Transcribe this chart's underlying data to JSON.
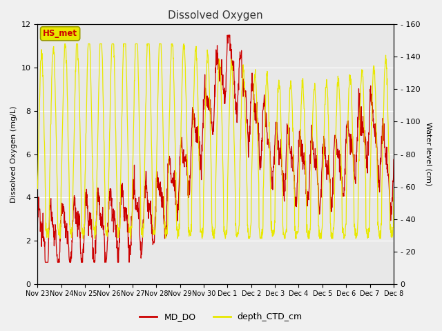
{
  "title": "Dissolved Oxygen",
  "ylabel_left": "Dissolved Oxygen (mg/L)",
  "ylabel_right": "Water level (cm)",
  "ylim_left": [
    0,
    12
  ],
  "ylim_right": [
    0,
    160
  ],
  "yticks_left": [
    0,
    2,
    4,
    6,
    8,
    10,
    12
  ],
  "yticks_right": [
    0,
    20,
    40,
    60,
    80,
    100,
    120,
    140,
    160
  ],
  "xtick_labels": [
    "Nov 23",
    "Nov 24",
    "Nov 25",
    "Nov 26",
    "Nov 27",
    "Nov 28",
    "Nov 29",
    "Nov 30",
    "Dec 1",
    "Dec 2",
    "Dec 3",
    "Dec 4",
    "Dec 5",
    "Dec 6",
    "Dec 7",
    "Dec 8"
  ],
  "fig_bg_color": "#f0f0f0",
  "plot_bg_color": "#e8e8e8",
  "line_color_do": "#cc0000",
  "line_color_depth": "#e8e800",
  "legend_label_do": "MD_DO",
  "legend_label_depth": "depth_CTD_cm",
  "annotation_text": "HS_met",
  "annotation_bg": "#e8e800",
  "annotation_border": "#999900",
  "annotation_text_color": "#cc0000",
  "grid_color": "#ffffff",
  "n_days": 15,
  "n_points": 1440
}
